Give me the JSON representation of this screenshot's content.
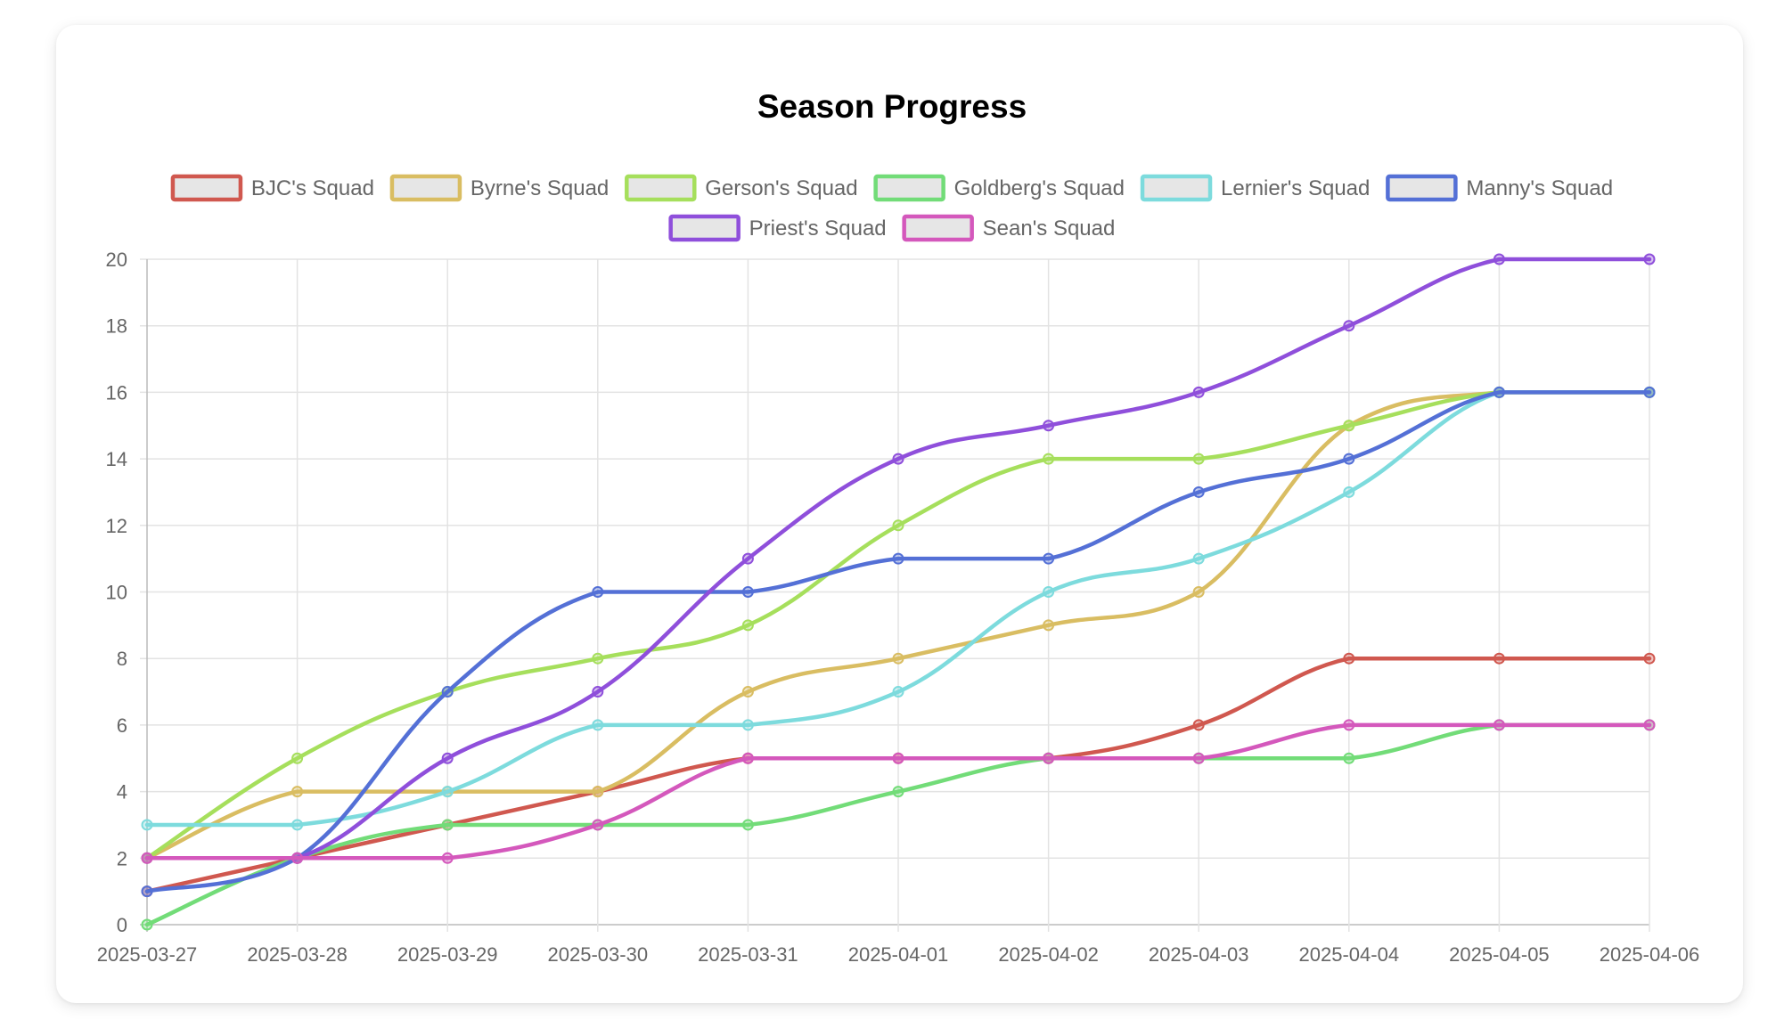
{
  "chart_data": {
    "type": "line",
    "title": "Season Progress",
    "xlabel": "",
    "ylabel": "",
    "ylim": [
      0,
      20
    ],
    "yticks": [
      0,
      2,
      4,
      6,
      8,
      10,
      12,
      14,
      16,
      18,
      20
    ],
    "grid": true,
    "legend_position": "top",
    "categories": [
      "2025-03-27",
      "2025-03-28",
      "2025-03-29",
      "2025-03-30",
      "2025-03-31",
      "2025-04-01",
      "2025-04-02",
      "2025-04-03",
      "2025-04-04",
      "2025-04-05",
      "2025-04-06"
    ],
    "series": [
      {
        "name": "BJC's Squad",
        "color": "#d0584f",
        "values": [
          1,
          2,
          3,
          4,
          5,
          5,
          5,
          6,
          8,
          8,
          8
        ]
      },
      {
        "name": "Byrne's Squad",
        "color": "#d9bd62",
        "values": [
          2,
          4,
          4,
          4,
          7,
          8,
          9,
          10,
          15,
          16,
          16
        ]
      },
      {
        "name": "Gerson's Squad",
        "color": "#a6df5c",
        "values": [
          2,
          5,
          7,
          8,
          9,
          12,
          14,
          14,
          15,
          16,
          16
        ]
      },
      {
        "name": "Goldberg's Squad",
        "color": "#72dc78",
        "values": [
          0,
          2,
          3,
          3,
          3,
          4,
          5,
          5,
          5,
          6,
          6
        ]
      },
      {
        "name": "Lernier's Squad",
        "color": "#7ddbdd",
        "values": [
          3,
          3,
          4,
          6,
          6,
          7,
          10,
          11,
          13,
          16,
          16
        ]
      },
      {
        "name": "Manny's Squad",
        "color": "#5470d6",
        "values": [
          1,
          2,
          7,
          10,
          10,
          11,
          11,
          13,
          14,
          16,
          16
        ]
      },
      {
        "name": "Priest's Squad",
        "color": "#8f4fdb",
        "values": [
          2,
          2,
          5,
          7,
          11,
          14,
          15,
          16,
          18,
          20,
          20
        ]
      },
      {
        "name": "Sean's Squad",
        "color": "#d458bc",
        "values": [
          2,
          2,
          2,
          3,
          5,
          5,
          5,
          5,
          6,
          6,
          6
        ]
      }
    ]
  }
}
